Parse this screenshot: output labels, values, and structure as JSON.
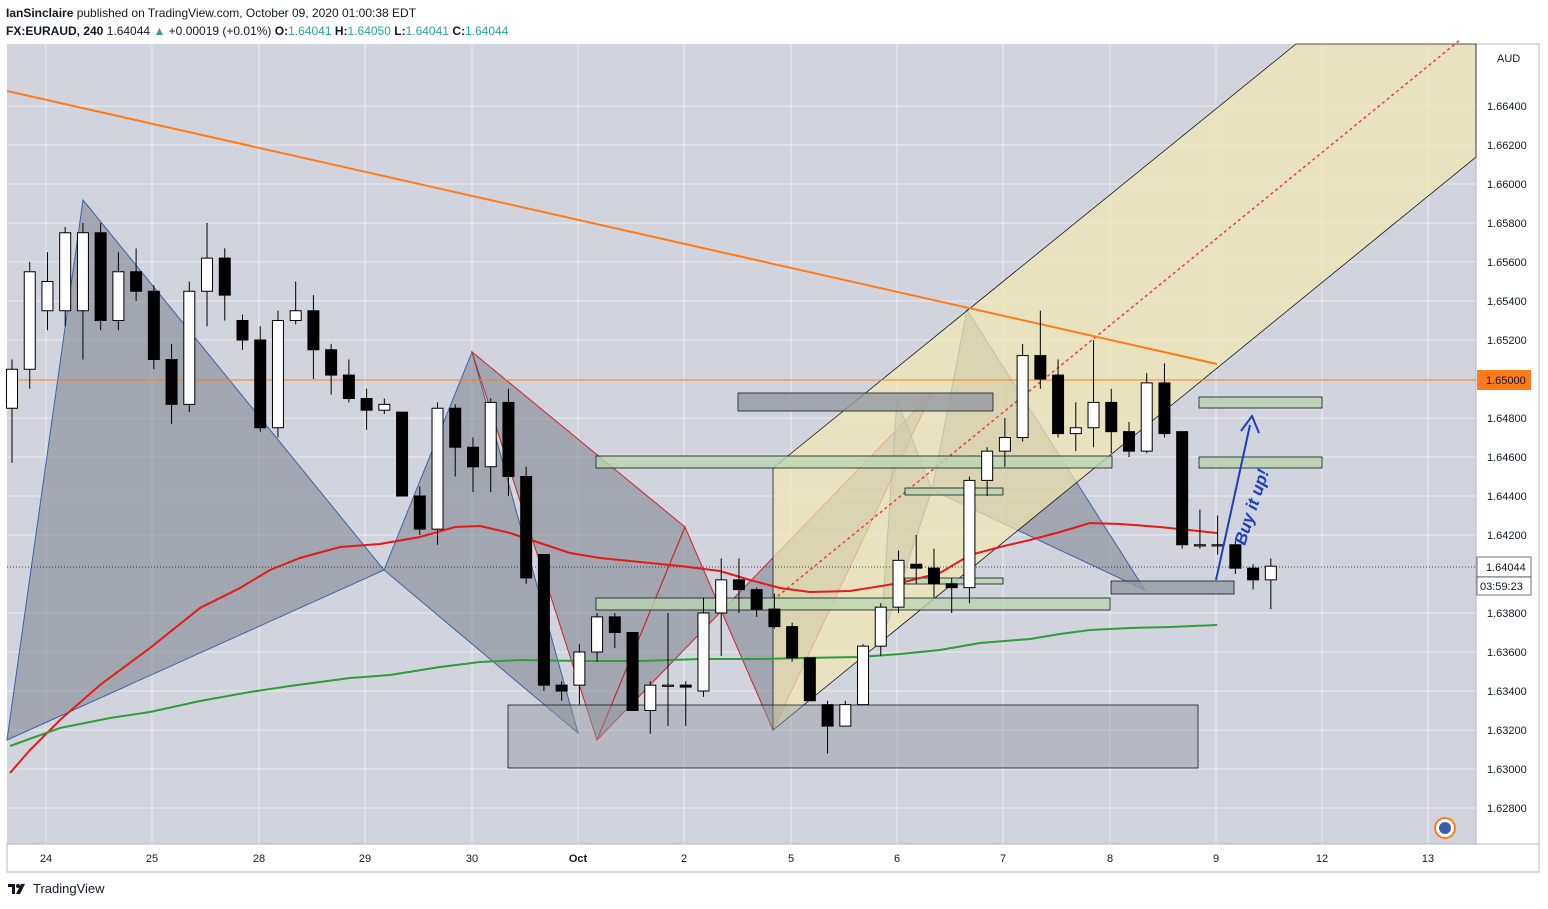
{
  "header": {
    "publisher": "IanSinclaire",
    "published_text": " published on TradingView.com, October 09, 2020 01:00:38 EDT",
    "symbol": "FX:EURAUD, 240",
    "last": "1.64044",
    "change_arrow": "▲",
    "change": "+0.00019 (+0.01%)",
    "o_label": "O:",
    "o": "1.64041",
    "h_label": "H:",
    "h": "1.64050",
    "l_label": "L:",
    "l": "1.64041",
    "c_label": "C:",
    "c": "1.64044"
  },
  "footer": {
    "brand": "TradingView"
  },
  "colors": {
    "background": "#d1d4dc",
    "bull_body": "#ffffff",
    "bear_body": "#000000",
    "ma_red": "#e31b1b",
    "ma_green": "#2e9e3a",
    "trend_orange": "#ff7b1a",
    "channel_fill": "#f2eab0",
    "pattern_fill": "#7c7f8c",
    "zone_green": "#b9d4b0",
    "zone_gray": "#9598a1",
    "annotation_blue": "#1c3fbf"
  },
  "chart_data": {
    "type": "candlestick",
    "currency": "AUD",
    "ylim": [
      1.627,
      1.6685
    ],
    "y_ticks": [
      "1.66400",
      "1.66200",
      "1.66000",
      "1.65800",
      "1.65600",
      "1.65400",
      "1.65200",
      "1.64800",
      "1.64600",
      "1.64400",
      "1.64200",
      "1.63800",
      "1.63600",
      "1.63400",
      "1.63200",
      "1.63000",
      "1.62800"
    ],
    "x_ticks": [
      "24",
      "25",
      "28",
      "29",
      "30",
      "Oct",
      "2",
      "5",
      "6",
      "7",
      "8",
      "9",
      "12",
      "13"
    ],
    "price_label": "1.65000",
    "last_price_label": "1.64044",
    "countdown_label": "03:59:23",
    "annotation": "Buy it up!",
    "candles": [
      {
        "o": 1.6485,
        "h": 1.651,
        "l": 1.6457,
        "c": 1.6505
      },
      {
        "o": 1.6505,
        "h": 1.656,
        "l": 1.6495,
        "c": 1.6555
      },
      {
        "o": 1.6535,
        "h": 1.6565,
        "l": 1.6525,
        "c": 1.655
      },
      {
        "o": 1.6535,
        "h": 1.6578,
        "l": 1.6527,
        "c": 1.6575
      },
      {
        "o": 1.6535,
        "h": 1.658,
        "l": 1.651,
        "c": 1.6575
      },
      {
        "o": 1.6575,
        "h": 1.658,
        "l": 1.6525,
        "c": 1.653
      },
      {
        "o": 1.653,
        "h": 1.6565,
        "l": 1.6525,
        "c": 1.6555
      },
      {
        "o": 1.6555,
        "h": 1.6567,
        "l": 1.654,
        "c": 1.6545
      },
      {
        "o": 1.6545,
        "h": 1.6548,
        "l": 1.6505,
        "c": 1.651
      },
      {
        "o": 1.651,
        "h": 1.6518,
        "l": 1.6477,
        "c": 1.6487
      },
      {
        "o": 1.6487,
        "h": 1.655,
        "l": 1.6483,
        "c": 1.6545
      },
      {
        "o": 1.6545,
        "h": 1.658,
        "l": 1.6527,
        "c": 1.6562
      },
      {
        "o": 1.6562,
        "h": 1.6567,
        "l": 1.653,
        "c": 1.6543
      },
      {
        "o": 1.653,
        "h": 1.6533,
        "l": 1.6515,
        "c": 1.652
      },
      {
        "o": 1.652,
        "h": 1.6527,
        "l": 1.6473,
        "c": 1.6475
      },
      {
        "o": 1.6475,
        "h": 1.6535,
        "l": 1.647,
        "c": 1.653
      },
      {
        "o": 1.653,
        "h": 1.655,
        "l": 1.6528,
        "c": 1.6535
      },
      {
        "o": 1.6535,
        "h": 1.6543,
        "l": 1.65,
        "c": 1.6515
      },
      {
        "o": 1.6515,
        "h": 1.6518,
        "l": 1.6492,
        "c": 1.6502
      },
      {
        "o": 1.6502,
        "h": 1.651,
        "l": 1.6488,
        "c": 1.649
      },
      {
        "o": 1.649,
        "h": 1.6495,
        "l": 1.6474,
        "c": 1.6484
      },
      {
        "o": 1.6484,
        "h": 1.649,
        "l": 1.6482,
        "c": 1.6487
      },
      {
        "o": 1.6483,
        "h": 1.6483,
        "l": 1.644,
        "c": 1.644
      },
      {
        "o": 1.644,
        "h": 1.6445,
        "l": 1.642,
        "c": 1.6423
      },
      {
        "o": 1.6423,
        "h": 1.6488,
        "l": 1.6415,
        "c": 1.6485
      },
      {
        "o": 1.6485,
        "h": 1.6487,
        "l": 1.645,
        "c": 1.6465
      },
      {
        "o": 1.6465,
        "h": 1.647,
        "l": 1.6442,
        "c": 1.6455
      },
      {
        "o": 1.6455,
        "h": 1.649,
        "l": 1.6442,
        "c": 1.6488
      },
      {
        "o": 1.6488,
        "h": 1.6495,
        "l": 1.644,
        "c": 1.645
      },
      {
        "o": 1.645,
        "h": 1.6455,
        "l": 1.6395,
        "c": 1.6398
      },
      {
        "o": 1.641,
        "h": 1.641,
        "l": 1.634,
        "c": 1.6343
      },
      {
        "o": 1.6343,
        "h": 1.6345,
        "l": 1.6335,
        "c": 1.634
      },
      {
        "o": 1.6343,
        "h": 1.6364,
        "l": 1.6333,
        "c": 1.636
      },
      {
        "o": 1.636,
        "h": 1.638,
        "l": 1.6355,
        "c": 1.6378
      },
      {
        "o": 1.6378,
        "h": 1.638,
        "l": 1.6362,
        "c": 1.637
      },
      {
        "o": 1.637,
        "h": 1.637,
        "l": 1.633,
        "c": 1.633
      },
      {
        "o": 1.633,
        "h": 1.6345,
        "l": 1.6318,
        "c": 1.6343
      },
      {
        "o": 1.6343,
        "h": 1.638,
        "l": 1.6322,
        "c": 1.6343
      },
      {
        "o": 1.6343,
        "h": 1.6345,
        "l": 1.6322,
        "c": 1.6342
      },
      {
        "o": 1.634,
        "h": 1.6388,
        "l": 1.6337,
        "c": 1.638
      },
      {
        "o": 1.638,
        "h": 1.6408,
        "l": 1.6358,
        "c": 1.6397
      },
      {
        "o": 1.6397,
        "h": 1.6408,
        "l": 1.638,
        "c": 1.6392
      },
      {
        "o": 1.6392,
        "h": 1.6393,
        "l": 1.6378,
        "c": 1.6382
      },
      {
        "o": 1.6382,
        "h": 1.639,
        "l": 1.6372,
        "c": 1.6373
      },
      {
        "o": 1.6373,
        "h": 1.6375,
        "l": 1.6355,
        "c": 1.6357
      },
      {
        "o": 1.6357,
        "h": 1.6357,
        "l": 1.6335,
        "c": 1.6335
      },
      {
        "o": 1.6333,
        "h": 1.6335,
        "l": 1.6308,
        "c": 1.6322
      },
      {
        "o": 1.6322,
        "h": 1.6335,
        "l": 1.6322,
        "c": 1.6333
      },
      {
        "o": 1.6333,
        "h": 1.6364,
        "l": 1.6333,
        "c": 1.6363
      },
      {
        "o": 1.6363,
        "h": 1.6385,
        "l": 1.6358,
        "c": 1.6383
      },
      {
        "o": 1.6383,
        "h": 1.6412,
        "l": 1.638,
        "c": 1.6407
      },
      {
        "o": 1.6405,
        "h": 1.642,
        "l": 1.6395,
        "c": 1.6403
      },
      {
        "o": 1.6403,
        "h": 1.6413,
        "l": 1.6388,
        "c": 1.6395
      },
      {
        "o": 1.6395,
        "h": 1.6398,
        "l": 1.638,
        "c": 1.6393
      },
      {
        "o": 1.6393,
        "h": 1.645,
        "l": 1.6385,
        "c": 1.6448
      },
      {
        "o": 1.6448,
        "h": 1.6465,
        "l": 1.644,
        "c": 1.6463
      },
      {
        "o": 1.6463,
        "h": 1.648,
        "l": 1.6455,
        "c": 1.647
      },
      {
        "o": 1.647,
        "h": 1.6518,
        "l": 1.6468,
        "c": 1.6512
      },
      {
        "o": 1.6512,
        "h": 1.6535,
        "l": 1.6495,
        "c": 1.65
      },
      {
        "o": 1.6502,
        "h": 1.651,
        "l": 1.647,
        "c": 1.6472
      },
      {
        "o": 1.6472,
        "h": 1.6488,
        "l": 1.6463,
        "c": 1.6475
      },
      {
        "o": 1.6475,
        "h": 1.652,
        "l": 1.6465,
        "c": 1.6488
      },
      {
        "o": 1.6488,
        "h": 1.6495,
        "l": 1.6462,
        "c": 1.6473
      },
      {
        "o": 1.6473,
        "h": 1.6478,
        "l": 1.646,
        "c": 1.6463
      },
      {
        "o": 1.6463,
        "h": 1.6503,
        "l": 1.6462,
        "c": 1.6498
      },
      {
        "o": 1.6498,
        "h": 1.6508,
        "l": 1.647,
        "c": 1.6472
      },
      {
        "o": 1.6473,
        "h": 1.6473,
        "l": 1.6413,
        "c": 1.6415
      },
      {
        "o": 1.6415,
        "h": 1.6433,
        "l": 1.6413,
        "c": 1.6415
      },
      {
        "o": 1.6415,
        "h": 1.643,
        "l": 1.641,
        "c": 1.6415
      },
      {
        "o": 1.6415,
        "h": 1.6417,
        "l": 1.64,
        "c": 1.6403
      },
      {
        "o": 1.6403,
        "h": 1.6405,
        "l": 1.6392,
        "c": 1.6397
      },
      {
        "o": 1.6397,
        "h": 1.6408,
        "l": 1.6382,
        "c": 1.6404
      }
    ]
  }
}
